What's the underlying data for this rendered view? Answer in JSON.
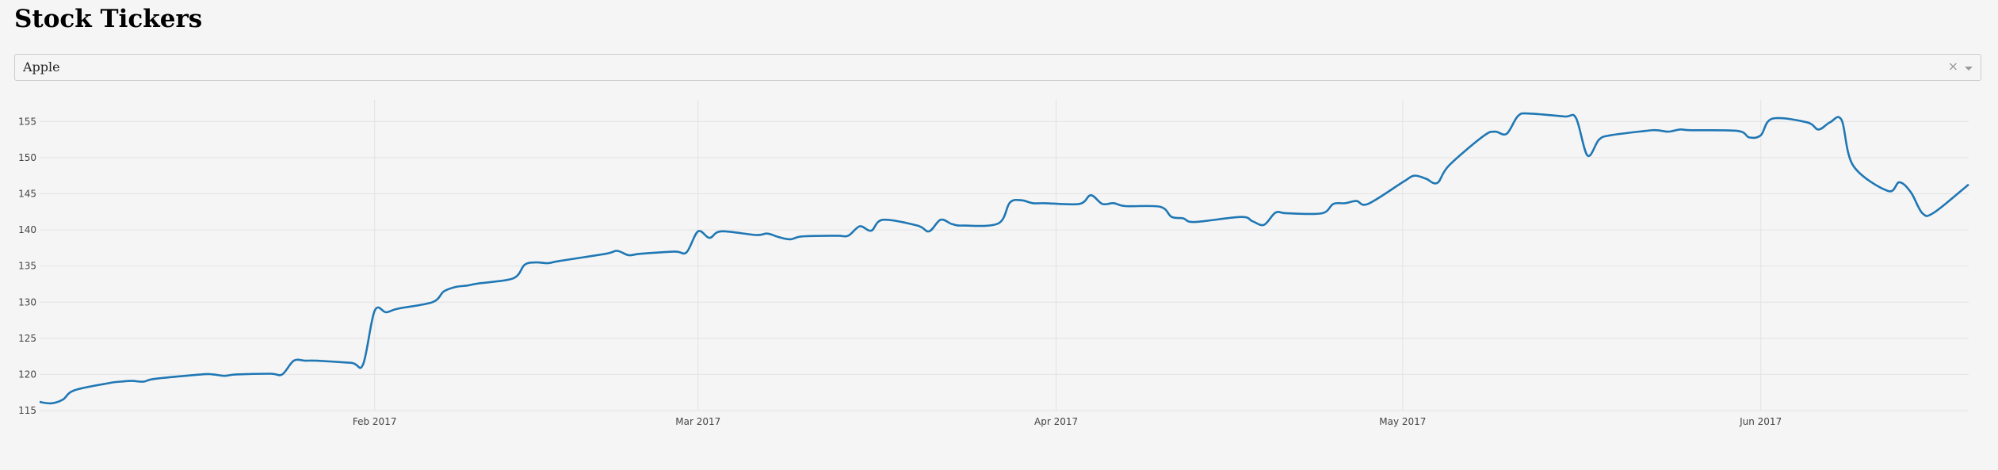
{
  "page": {
    "title": "Stock Tickers"
  },
  "dropdown": {
    "selected": "Apple",
    "clear_glyph": "×",
    "arrow_icon": "chevron-down-icon"
  },
  "chart_data": {
    "type": "line",
    "title": "",
    "xlabel": "",
    "ylabel": "",
    "x_ticks": [
      {
        "date": "2017-02-01",
        "label": "Feb 2017"
      },
      {
        "date": "2017-03-01",
        "label": "Mar 2017"
      },
      {
        "date": "2017-04-01",
        "label": "Apr 2017"
      },
      {
        "date": "2017-05-01",
        "label": "May 2017"
      },
      {
        "date": "2017-06-01",
        "label": "Jun 2017"
      }
    ],
    "y_ticks": [
      115,
      120,
      125,
      130,
      135,
      140,
      145,
      150,
      155
    ],
    "xlim": [
      "2017-01-03",
      "2017-06-19"
    ],
    "ylim": [
      115,
      158
    ],
    "grid": true,
    "line_color": "#1f77b4",
    "series": [
      {
        "x": [
          "2017-01-03",
          "2017-01-04",
          "2017-01-05",
          "2017-01-06",
          "2017-01-09",
          "2017-01-10",
          "2017-01-11",
          "2017-01-12",
          "2017-01-13",
          "2017-01-17",
          "2017-01-18",
          "2017-01-19",
          "2017-01-20",
          "2017-01-23",
          "2017-01-24",
          "2017-01-25",
          "2017-01-26",
          "2017-01-27",
          "2017-01-30",
          "2017-01-31",
          "2017-02-01",
          "2017-02-02",
          "2017-02-03",
          "2017-02-06",
          "2017-02-07",
          "2017-02-08",
          "2017-02-09",
          "2017-02-10",
          "2017-02-13",
          "2017-02-14",
          "2017-02-15",
          "2017-02-16",
          "2017-02-17",
          "2017-02-21",
          "2017-02-22",
          "2017-02-23",
          "2017-02-24",
          "2017-02-27",
          "2017-02-28",
          "2017-03-01",
          "2017-03-02",
          "2017-03-03",
          "2017-03-06",
          "2017-03-07",
          "2017-03-08",
          "2017-03-09",
          "2017-03-10",
          "2017-03-13",
          "2017-03-14",
          "2017-03-15",
          "2017-03-16",
          "2017-03-17",
          "2017-03-20",
          "2017-03-21",
          "2017-03-22",
          "2017-03-23",
          "2017-03-24",
          "2017-03-27",
          "2017-03-28",
          "2017-03-29",
          "2017-03-30",
          "2017-03-31",
          "2017-04-03",
          "2017-04-04",
          "2017-04-05",
          "2017-04-06",
          "2017-04-07",
          "2017-04-10",
          "2017-04-11",
          "2017-04-12",
          "2017-04-13",
          "2017-04-17",
          "2017-04-18",
          "2017-04-19",
          "2017-04-20",
          "2017-04-21",
          "2017-04-24",
          "2017-04-25",
          "2017-04-26",
          "2017-04-27",
          "2017-04-28",
          "2017-05-01",
          "2017-05-02",
          "2017-05-03",
          "2017-05-04",
          "2017-05-05",
          "2017-05-08",
          "2017-05-09",
          "2017-05-10",
          "2017-05-11",
          "2017-05-12",
          "2017-05-15",
          "2017-05-16",
          "2017-05-17",
          "2017-05-18",
          "2017-05-19",
          "2017-05-22",
          "2017-05-23",
          "2017-05-24",
          "2017-05-25",
          "2017-05-26",
          "2017-05-30",
          "2017-05-31",
          "2017-06-01",
          "2017-06-02",
          "2017-06-05",
          "2017-06-06",
          "2017-06-07",
          "2017-06-08",
          "2017-06-09",
          "2017-06-12",
          "2017-06-13",
          "2017-06-14",
          "2017-06-15",
          "2017-06-16",
          "2017-06-19"
        ],
        "y": [
          116.2,
          116.0,
          116.5,
          117.8,
          118.8,
          119.0,
          119.1,
          119.0,
          119.4,
          120.0,
          120.0,
          119.8,
          120.0,
          120.1,
          120.0,
          121.9,
          121.9,
          121.9,
          121.6,
          121.4,
          128.8,
          128.6,
          129.1,
          130.0,
          131.5,
          132.1,
          132.3,
          132.6,
          133.3,
          135.2,
          135.5,
          135.4,
          135.7,
          136.7,
          137.1,
          136.5,
          136.7,
          137.0,
          136.9,
          139.8,
          138.9,
          139.8,
          139.3,
          139.5,
          139.0,
          138.7,
          139.1,
          139.2,
          139.2,
          140.5,
          139.9,
          141.4,
          140.6,
          139.8,
          141.4,
          140.8,
          140.6,
          140.9,
          143.8,
          144.1,
          143.7,
          143.7,
          143.6,
          144.8,
          143.6,
          143.7,
          143.3,
          143.2,
          141.8,
          141.6,
          141.1,
          141.8,
          141.2,
          140.7,
          142.4,
          142.3,
          142.3,
          143.6,
          143.7,
          144.0,
          143.6,
          146.6,
          147.5,
          147.1,
          146.5,
          148.9,
          153.0,
          153.6,
          153.3,
          155.8,
          156.1,
          155.7,
          155.5,
          150.3,
          152.5,
          153.1,
          153.7,
          153.8,
          153.6,
          153.9,
          153.8,
          153.7,
          152.8,
          153.1,
          155.4,
          154.9,
          153.9,
          154.9,
          155.2,
          148.9,
          145.4,
          146.6,
          145.2,
          142.3,
          142.4,
          146.3
        ]
      }
    ]
  }
}
